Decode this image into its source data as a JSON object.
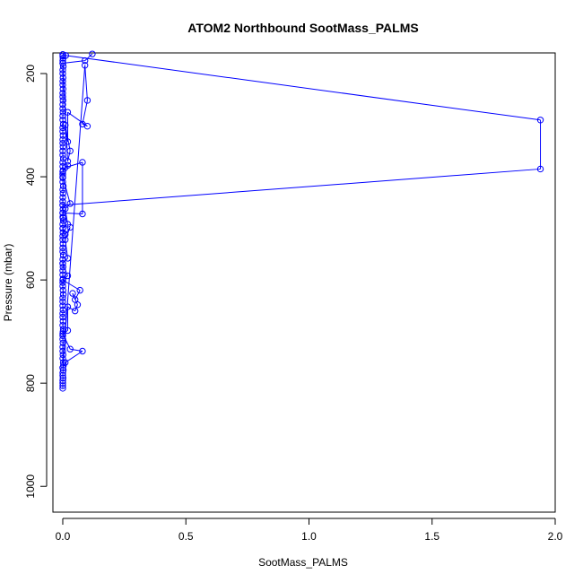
{
  "chart_data": {
    "type": "line",
    "title": "ATOM2 Northbound SootMass_PALMS",
    "xlabel": "SootMass_PALMS",
    "ylabel": "Pressure (mbar)",
    "xlim": [
      -0.04,
      2.0
    ],
    "ylim": [
      1050,
      160
    ],
    "y_reversed": true,
    "x_ticks": [
      0,
      0.5,
      1.0,
      1.5,
      2.0
    ],
    "x_tick_labels": [
      "0.0",
      "0.5",
      "1.0",
      "1.5",
      "2.0"
    ],
    "y_ticks": [
      200,
      400,
      600,
      800,
      1000
    ],
    "y_tick_labels": [
      "200",
      "400",
      "600",
      "800",
      "1000"
    ],
    "grid": false,
    "legend": "none",
    "series_color": "#0000ff",
    "marker": "open-circle",
    "series": [
      {
        "points": [
          [
            0.0,
            810
          ],
          [
            0.0,
            805
          ],
          [
            0.0,
            800
          ],
          [
            0.0,
            795
          ],
          [
            0.001,
            790
          ],
          [
            0.0,
            785
          ],
          [
            0.0,
            780
          ],
          [
            0.002,
            775
          ],
          [
            0.0,
            770
          ],
          [
            0.003,
            765
          ],
          [
            0.002,
            760
          ],
          [
            0.0,
            752
          ],
          [
            0.001,
            745
          ],
          [
            0.0,
            738
          ],
          [
            0.0,
            730
          ],
          [
            0.001,
            722
          ],
          [
            0.0,
            715
          ],
          [
            0.0,
            708
          ],
          [
            0.001,
            700
          ],
          [
            0.002,
            695
          ],
          [
            0.0,
            688
          ],
          [
            0.001,
            680
          ],
          [
            0.0,
            672
          ],
          [
            0.0,
            665
          ],
          [
            0.001,
            658
          ],
          [
            0.0,
            650
          ],
          [
            0.0,
            642
          ],
          [
            0.0,
            635
          ],
          [
            0.002,
            628
          ],
          [
            0.001,
            620
          ],
          [
            0.0,
            612
          ],
          [
            0.0,
            605
          ],
          [
            0.001,
            598
          ],
          [
            0.0,
            590
          ],
          [
            0.0,
            582
          ],
          [
            0.001,
            575
          ],
          [
            0.0,
            568
          ],
          [
            0.0,
            560
          ],
          [
            0.002,
            552
          ],
          [
            0.0,
            545
          ],
          [
            0.0,
            538
          ],
          [
            0.001,
            530
          ],
          [
            0.0,
            522
          ],
          [
            0.0,
            515
          ],
          [
            0.001,
            508
          ],
          [
            0.0,
            500
          ],
          [
            0.0,
            492
          ],
          [
            0.002,
            485
          ],
          [
            0.0,
            478
          ],
          [
            0.0,
            470
          ],
          [
            0.001,
            463
          ],
          [
            0.0,
            455
          ],
          [
            0.0,
            448
          ],
          [
            0.0,
            440
          ],
          [
            0.001,
            432
          ],
          [
            0.0,
            425
          ],
          [
            0.002,
            418
          ],
          [
            0.0,
            410
          ],
          [
            0.0,
            402
          ],
          [
            0.0,
            395
          ],
          [
            0.001,
            388
          ],
          [
            0.0,
            380
          ],
          [
            0.0,
            372
          ],
          [
            0.002,
            365
          ],
          [
            0.0,
            358
          ],
          [
            0.0,
            350
          ],
          [
            0.001,
            342
          ],
          [
            0.0,
            335
          ],
          [
            0.0,
            328
          ],
          [
            0.001,
            320
          ],
          [
            0.0,
            312
          ],
          [
            0.0,
            305
          ],
          [
            0.002,
            298
          ],
          [
            0.0,
            290
          ],
          [
            0.0,
            282
          ],
          [
            0.001,
            275
          ],
          [
            0.0,
            268
          ],
          [
            0.0,
            260
          ],
          [
            0.001,
            252
          ],
          [
            0.0,
            245
          ],
          [
            0.0,
            238
          ],
          [
            0.001,
            230
          ],
          [
            0.0,
            222
          ],
          [
            0.0,
            215
          ],
          [
            0.001,
            208
          ],
          [
            0.0,
            200
          ],
          [
            0.0,
            193
          ],
          [
            0.002,
            186
          ],
          [
            0.0,
            180
          ],
          [
            0.0,
            175
          ],
          [
            0.001,
            170
          ],
          [
            0.0,
            166
          ],
          [
            0.0,
            163
          ],
          [
            0.012,
            165
          ],
          [
            1.94,
            290
          ],
          [
            1.94,
            385
          ],
          [
            0.0,
            455
          ],
          [
            0.001,
            480
          ],
          [
            0.0,
            470
          ],
          [
            0.08,
            472
          ],
          [
            0.08,
            372
          ],
          [
            0.01,
            382
          ],
          [
            0.02,
            378
          ],
          [
            0.0,
            390
          ],
          [
            0.0,
            400
          ],
          [
            0.03,
            452
          ],
          [
            0.01,
            462
          ],
          [
            0.02,
            492
          ],
          [
            0.0,
            500
          ],
          [
            0.01,
            512
          ],
          [
            0.03,
            498
          ],
          [
            0.01,
            522
          ],
          [
            0.02,
            558
          ],
          [
            0.0,
            568
          ],
          [
            0.02,
            592
          ],
          [
            0.0,
            600
          ],
          [
            0.07,
            620
          ],
          [
            0.05,
            638
          ],
          [
            0.04,
            626
          ],
          [
            0.06,
            648
          ],
          [
            0.05,
            660
          ],
          [
            0.02,
            652
          ],
          [
            0.02,
            698
          ],
          [
            0.0,
            704
          ],
          [
            0.03,
            734
          ],
          [
            0.08,
            738
          ],
          [
            0.01,
            760
          ],
          [
            0.0,
            770
          ],
          [
            0.09,
            184
          ],
          [
            0.1,
            252
          ],
          [
            0.08,
            298
          ],
          [
            0.1,
            302
          ],
          [
            0.02,
            275
          ],
          [
            0.02,
            332
          ],
          [
            0.01,
            300
          ],
          [
            0.03,
            350
          ],
          [
            0.02,
            370
          ],
          [
            0.0,
            180
          ],
          [
            0.09,
            175
          ],
          [
            0.12,
            162
          ]
        ]
      }
    ]
  }
}
